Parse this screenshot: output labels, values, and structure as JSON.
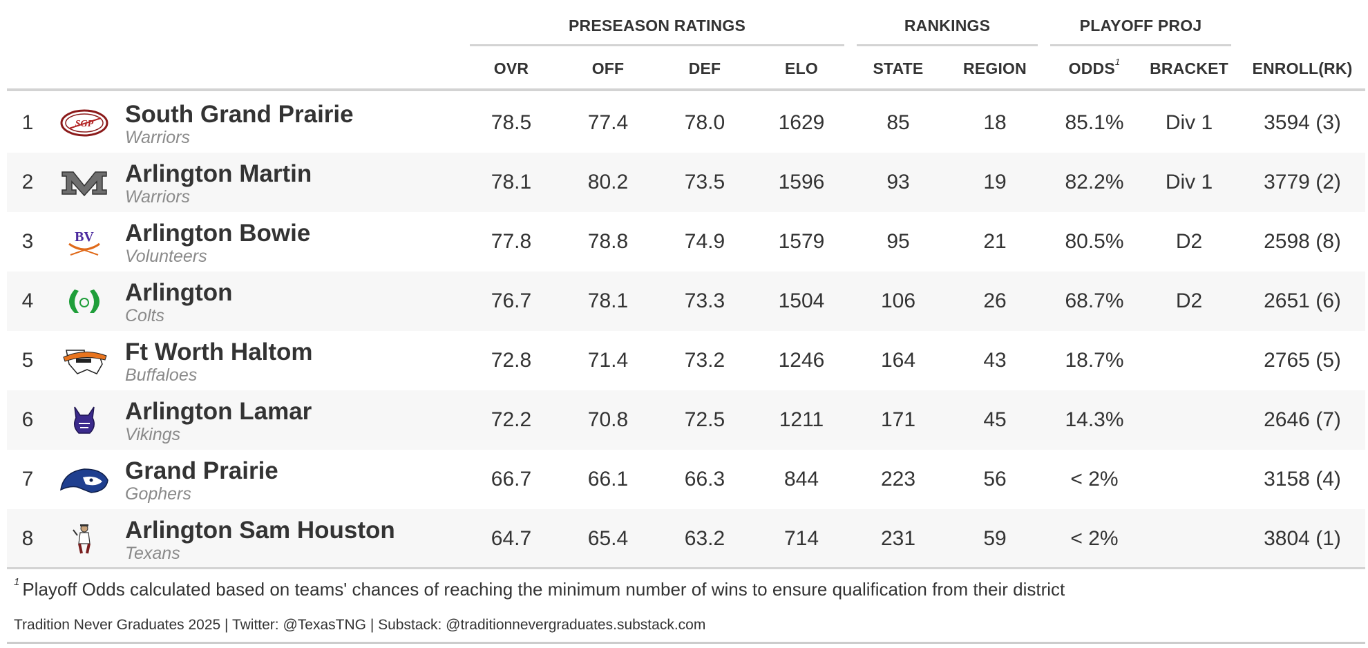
{
  "groups": {
    "preseason": "PRESEASON RATINGS",
    "rankings": "RANKINGS",
    "playoff": "PLAYOFF PROJ"
  },
  "columns": {
    "ovr": "OVR",
    "off": "OFF",
    "def": "DEF",
    "elo": "ELO",
    "state": "STATE",
    "region": "REGION",
    "odds": "ODDS",
    "odds_note": "1",
    "bracket": "BRACKET",
    "enroll": "ENROLL(RK)"
  },
  "rows": [
    {
      "rank": "1",
      "name": "South Grand Prairie",
      "mascot": "Warriors",
      "logo": "south-grand-prairie-warriors-logo",
      "ovr": "78.5",
      "off": "77.4",
      "def": "78.0",
      "elo": "1629",
      "state": "85",
      "region": "18",
      "odds": "85.1%",
      "bracket": "Div 1",
      "enroll": "3594 (3)"
    },
    {
      "rank": "2",
      "name": "Arlington Martin",
      "mascot": "Warriors",
      "logo": "arlington-martin-warriors-logo",
      "ovr": "78.1",
      "off": "80.2",
      "def": "73.5",
      "elo": "1596",
      "state": "93",
      "region": "19",
      "odds": "82.2%",
      "bracket": "Div 1",
      "enroll": "3779 (2)"
    },
    {
      "rank": "3",
      "name": "Arlington Bowie",
      "mascot": "Volunteers",
      "logo": "arlington-bowie-volunteers-logo",
      "ovr": "77.8",
      "off": "78.8",
      "def": "74.9",
      "elo": "1579",
      "state": "95",
      "region": "21",
      "odds": "80.5%",
      "bracket": "D2",
      "enroll": "2598 (8)"
    },
    {
      "rank": "4",
      "name": "Arlington",
      "mascot": "Colts",
      "logo": "arlington-colts-logo",
      "ovr": "76.7",
      "off": "78.1",
      "def": "73.3",
      "elo": "1504",
      "state": "106",
      "region": "26",
      "odds": "68.7%",
      "bracket": "D2",
      "enroll": "2651 (6)"
    },
    {
      "rank": "5",
      "name": "Ft Worth Haltom",
      "mascot": "Buffaloes",
      "logo": "haltom-buffaloes-logo",
      "ovr": "72.8",
      "off": "71.4",
      "def": "73.2",
      "elo": "1246",
      "state": "164",
      "region": "43",
      "odds": "18.7%",
      "bracket": "",
      "enroll": "2765 (5)"
    },
    {
      "rank": "6",
      "name": "Arlington Lamar",
      "mascot": "Vikings",
      "logo": "arlington-lamar-vikings-logo",
      "ovr": "72.2",
      "off": "70.8",
      "def": "72.5",
      "elo": "1211",
      "state": "171",
      "region": "45",
      "odds": "14.3%",
      "bracket": "",
      "enroll": "2646 (7)"
    },
    {
      "rank": "7",
      "name": "Grand Prairie",
      "mascot": "Gophers",
      "logo": "grand-prairie-gophers-logo",
      "ovr": "66.7",
      "off": "66.1",
      "def": "66.3",
      "elo": "844",
      "state": "223",
      "region": "56",
      "odds": "< 2%",
      "bracket": "",
      "enroll": "3158 (4)"
    },
    {
      "rank": "8",
      "name": "Arlington Sam Houston",
      "mascot": "Texans",
      "logo": "sam-houston-texans-logo",
      "ovr": "64.7",
      "off": "65.4",
      "def": "63.2",
      "elo": "714",
      "state": "231",
      "region": "59",
      "odds": "< 2%",
      "bracket": "",
      "enroll": "3804 (1)"
    }
  ],
  "footnote": {
    "marker": "1",
    "text": "Playoff Odds calculated based on teams' chances of reaching the minimum number of wins to ensure qualification from their district"
  },
  "source": "Tradition Never Graduates 2025 | Twitter: @TexasTNG | Substack: @traditionnevergraduates.substack.com",
  "colors": {
    "text": "#333333",
    "muted": "#8a8a8a",
    "stripe": "#f7f7f7",
    "rule": "#d3d3d3"
  }
}
